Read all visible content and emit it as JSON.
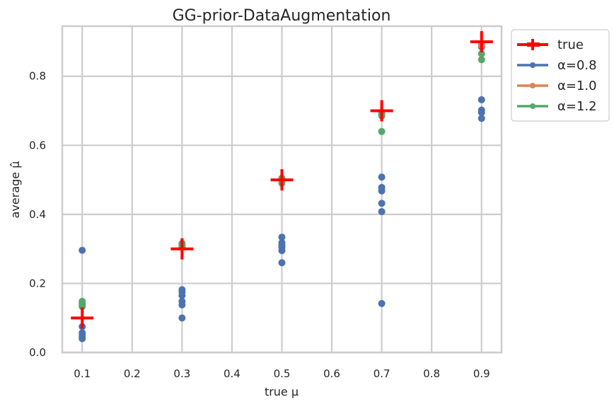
{
  "chart_data": {
    "type": "scatter",
    "title": "GG-prior-DataAugmentation",
    "xlabel": "true μ",
    "ylabel": "average μ̂",
    "xlim": [
      0.06,
      0.94
    ],
    "ylim": [
      0.0,
      0.945
    ],
    "xticks": [
      "0.1",
      "0.2",
      "0.3",
      "0.4",
      "0.5",
      "0.6",
      "0.7",
      "0.8",
      "0.9"
    ],
    "xtick_values": [
      0.1,
      0.2,
      0.3,
      0.4,
      0.5,
      0.6,
      0.7,
      0.8,
      0.9
    ],
    "yticks": [
      "0.0",
      "0.2",
      "0.4",
      "0.6",
      "0.8"
    ],
    "ytick_values": [
      0.0,
      0.2,
      0.4,
      0.6,
      0.8
    ],
    "grid": true,
    "legend_placement": "outside-top-right",
    "series": [
      {
        "name": "true",
        "marker": "plus",
        "color": "#ff0000",
        "points": [
          [
            0.1,
            0.1
          ],
          [
            0.3,
            0.3
          ],
          [
            0.5,
            0.5
          ],
          [
            0.7,
            0.7
          ],
          [
            0.9,
            0.9
          ]
        ]
      },
      {
        "name": "α=0.8",
        "marker": "circle",
        "color": "#4c72b0",
        "points": [
          [
            0.1,
            0.296
          ],
          [
            0.1,
            0.075
          ],
          [
            0.1,
            0.057
          ],
          [
            0.1,
            0.05
          ],
          [
            0.1,
            0.045
          ],
          [
            0.1,
            0.04
          ],
          [
            0.3,
            0.182
          ],
          [
            0.3,
            0.175
          ],
          [
            0.3,
            0.165
          ],
          [
            0.3,
            0.148
          ],
          [
            0.3,
            0.138
          ],
          [
            0.3,
            0.1
          ],
          [
            0.5,
            0.334
          ],
          [
            0.5,
            0.318
          ],
          [
            0.5,
            0.31
          ],
          [
            0.5,
            0.305
          ],
          [
            0.5,
            0.295
          ],
          [
            0.5,
            0.26
          ],
          [
            0.7,
            0.508
          ],
          [
            0.7,
            0.478
          ],
          [
            0.7,
            0.468
          ],
          [
            0.7,
            0.432
          ],
          [
            0.7,
            0.408
          ],
          [
            0.7,
            0.142
          ],
          [
            0.9,
            0.893
          ],
          [
            0.9,
            0.885
          ],
          [
            0.9,
            0.732
          ],
          [
            0.9,
            0.702
          ],
          [
            0.9,
            0.695
          ],
          [
            0.9,
            0.678
          ]
        ]
      },
      {
        "name": "α=1.0",
        "marker": "circle",
        "color": "#dd8452",
        "points": [
          [
            0.1,
            0.143
          ],
          [
            0.1,
            0.135
          ],
          [
            0.3,
            0.31
          ],
          [
            0.3,
            0.305
          ],
          [
            0.5,
            0.5
          ],
          [
            0.5,
            0.497
          ],
          [
            0.7,
            0.69
          ],
          [
            0.7,
            0.688
          ],
          [
            0.9,
            0.893
          ],
          [
            0.9,
            0.89
          ]
        ]
      },
      {
        "name": "α=1.2",
        "marker": "circle",
        "color": "#55a868",
        "points": [
          [
            0.1,
            0.148
          ],
          [
            0.1,
            0.142
          ],
          [
            0.1,
            0.138
          ],
          [
            0.1,
            0.133
          ],
          [
            0.3,
            0.316
          ],
          [
            0.3,
            0.312
          ],
          [
            0.3,
            0.308
          ],
          [
            0.5,
            0.505
          ],
          [
            0.5,
            0.5
          ],
          [
            0.5,
            0.49
          ],
          [
            0.7,
            0.695
          ],
          [
            0.7,
            0.69
          ],
          [
            0.7,
            0.685
          ],
          [
            0.7,
            0.64
          ],
          [
            0.9,
            0.865
          ],
          [
            0.9,
            0.848
          ]
        ]
      }
    ]
  }
}
